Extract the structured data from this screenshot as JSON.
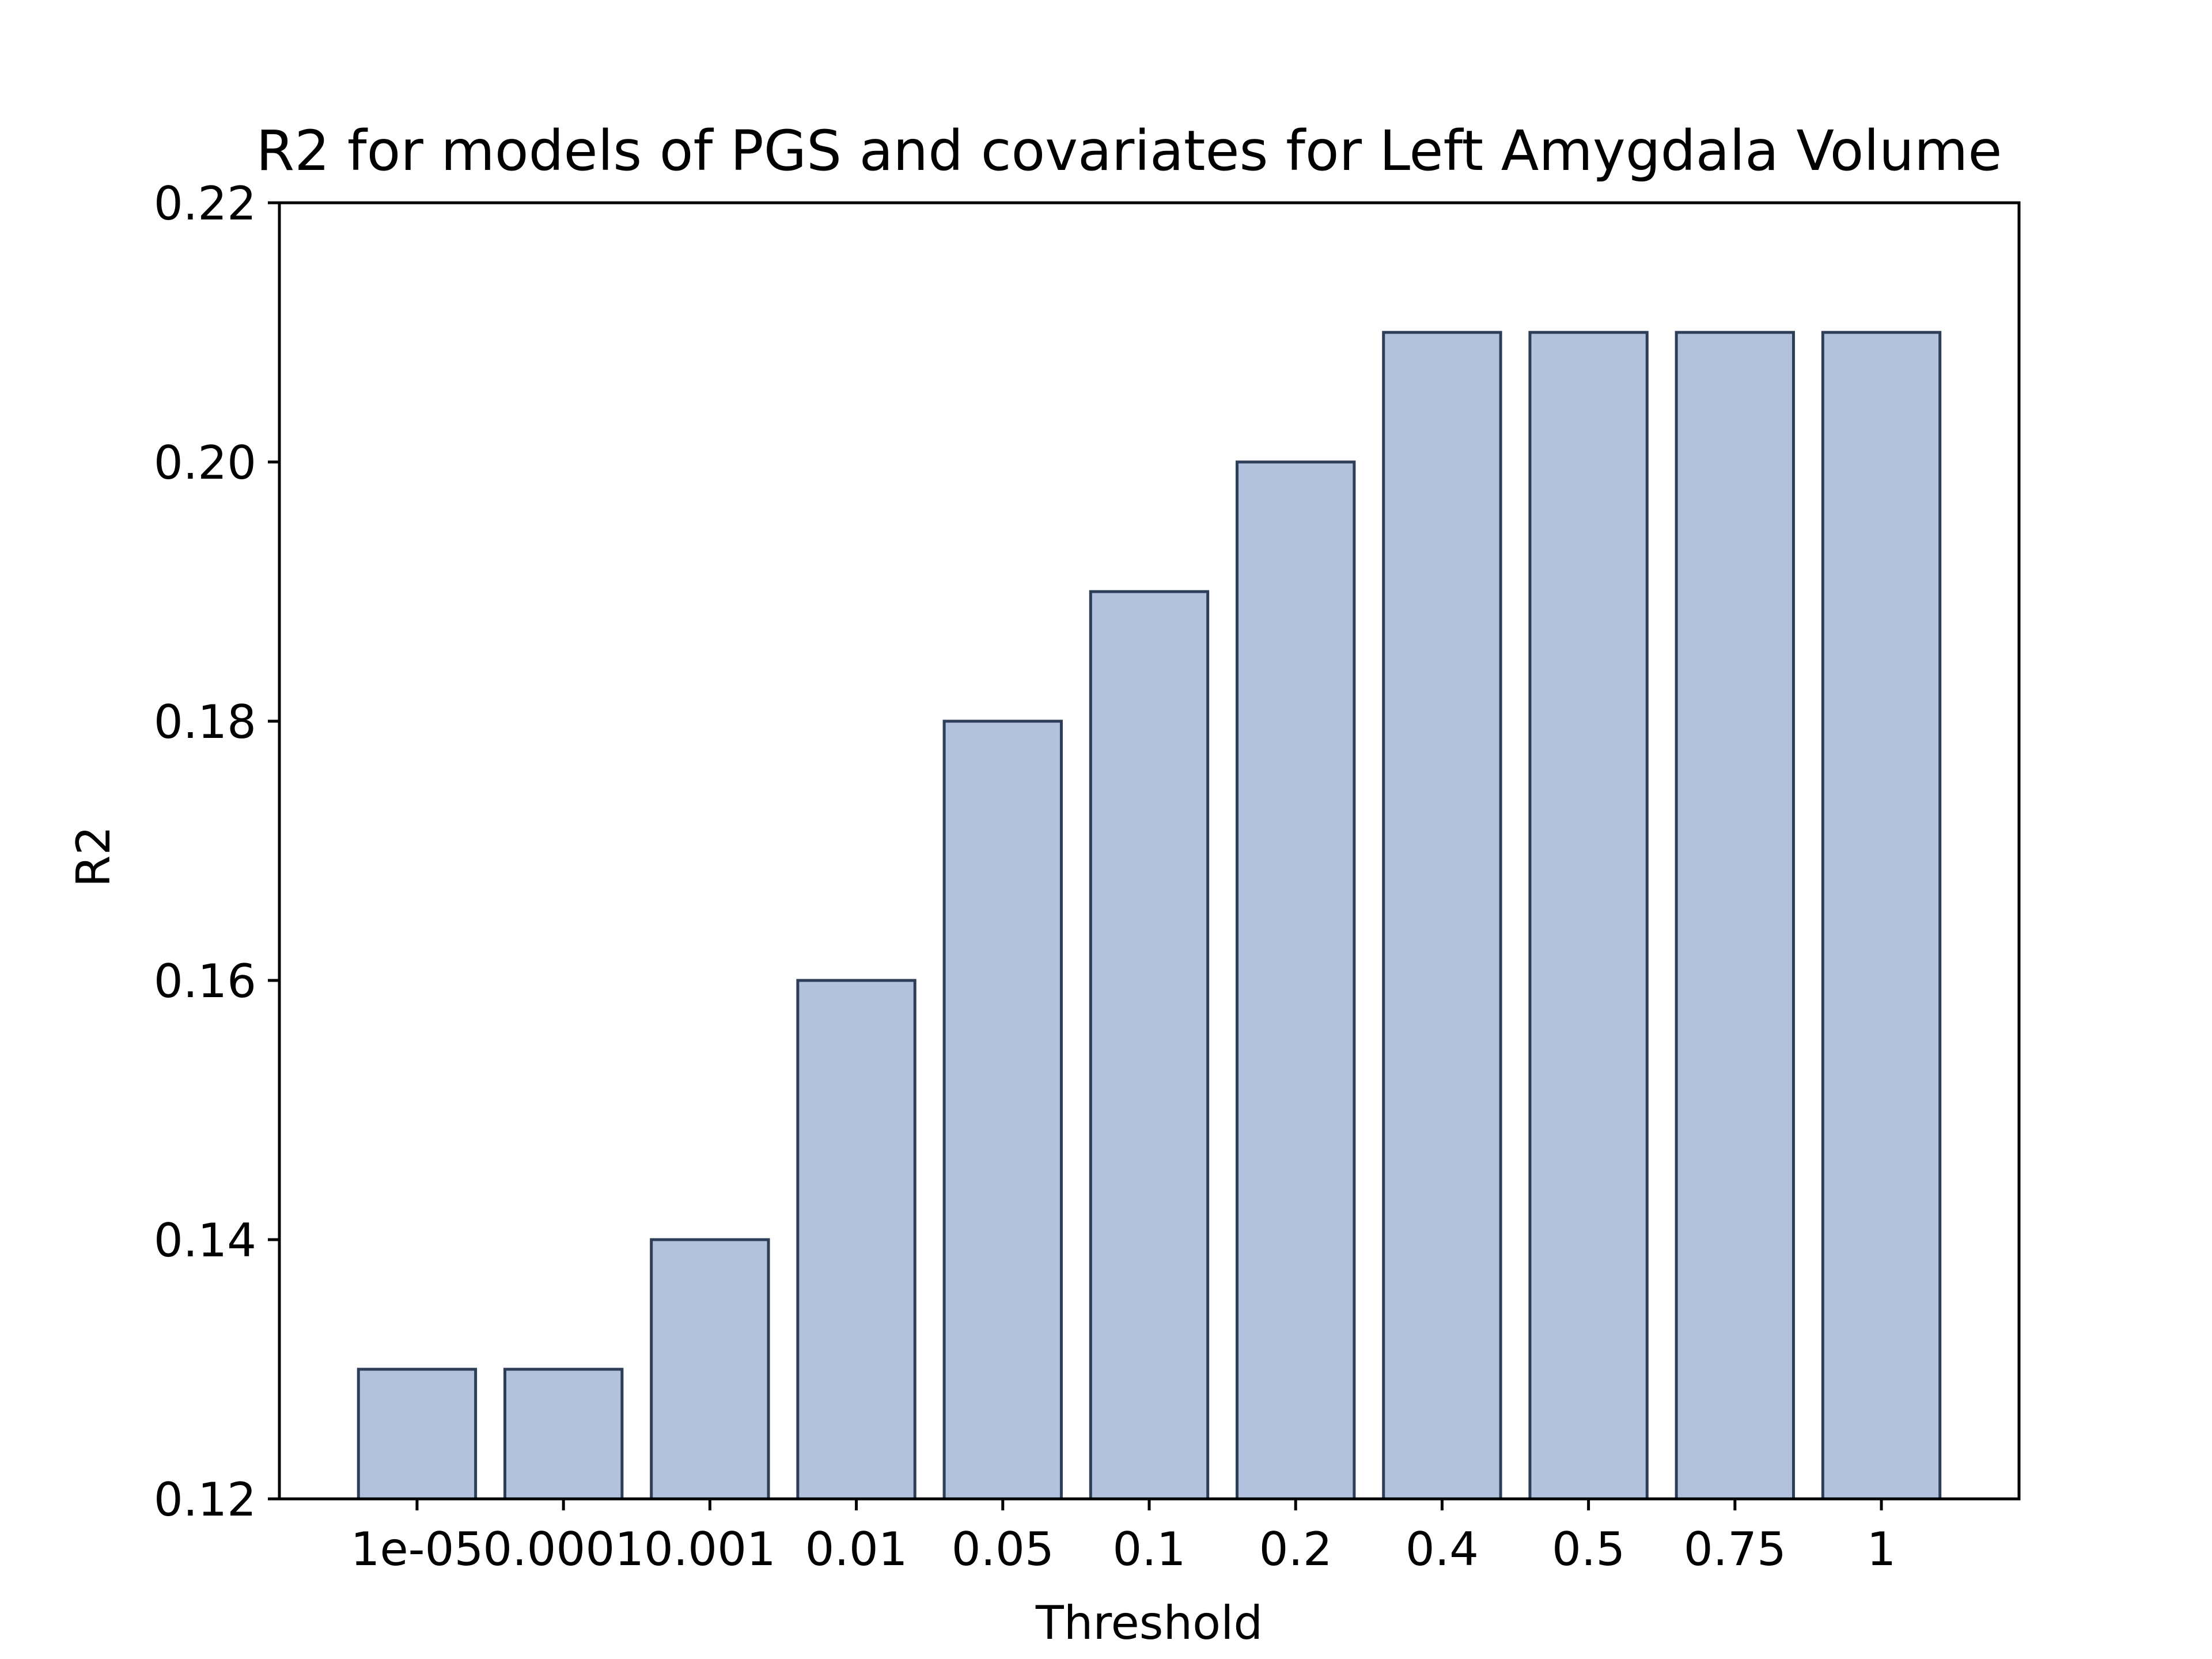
{
  "chart_data": {
    "type": "bar",
    "title": "R2 for models of PGS and covariates for Left Amygdala Volume",
    "xlabel": "Threshold",
    "ylabel": "R2",
    "categories": [
      "1e-05",
      "0.0001",
      "0.001",
      "0.01",
      "0.05",
      "0.1",
      "0.2",
      "0.4",
      "0.5",
      "0.75",
      "1"
    ],
    "values": [
      0.13,
      0.13,
      0.14,
      0.16,
      0.18,
      0.19,
      0.2,
      0.21,
      0.21,
      0.21,
      0.21
    ],
    "ylim": [
      0.12,
      0.22
    ],
    "yticks": [
      "0.12",
      "0.14",
      "0.16",
      "0.18",
      "0.20",
      "0.22"
    ],
    "grid": false,
    "legend": null,
    "colors": {
      "bar_fill": "#b2c2dc",
      "bar_edge": "#2e3e5a",
      "axis": "#000000"
    }
  }
}
